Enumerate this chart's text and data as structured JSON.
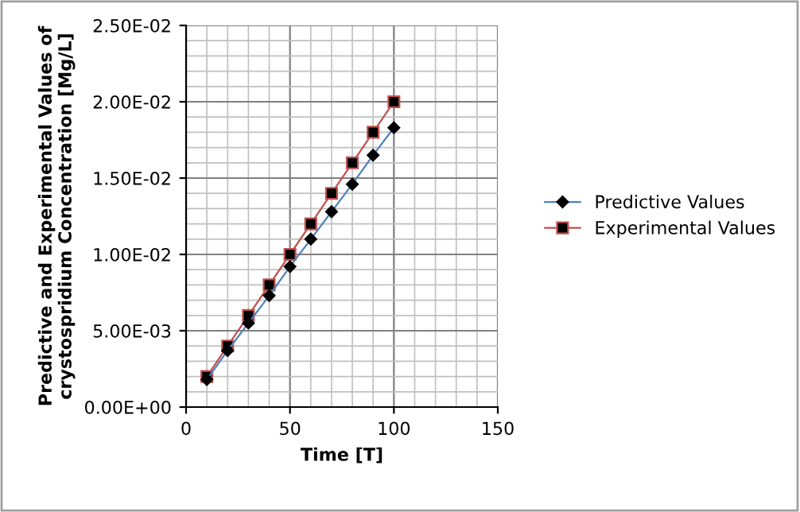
{
  "chart_data": {
    "type": "line",
    "xlabel": "Time [T]",
    "ylabel": "Predictive and Experimental Values of\ncrystospridium Concentration [Mg/L]",
    "x": [
      10,
      20,
      30,
      40,
      50,
      60,
      70,
      80,
      90,
      100
    ],
    "series": [
      {
        "name": "Predictive Values",
        "color": "#4f81bd",
        "marker": "diamond",
        "values": [
          0.0018,
          0.0037,
          0.0055,
          0.0073,
          0.0092,
          0.011,
          0.0128,
          0.0146,
          0.0165,
          0.0183
        ]
      },
      {
        "name": "Experimental Values",
        "color": "#c0504d",
        "marker": "square",
        "values": [
          0.002,
          0.004,
          0.006,
          0.008,
          0.01,
          0.012,
          0.014,
          0.016,
          0.018,
          0.02
        ]
      }
    ],
    "xlim": [
      0,
      150
    ],
    "xticks": [
      0,
      50,
      100,
      150
    ],
    "ylim": [
      0,
      0.025
    ],
    "yticks": [
      {
        "value": 0,
        "label": "0.00E+00"
      },
      {
        "value": 0.005,
        "label": "5.00E-03"
      },
      {
        "value": 0.01,
        "label": "1.00E-02"
      },
      {
        "value": 0.015,
        "label": "1.50E-02"
      },
      {
        "value": 0.02,
        "label": "2.00E-02"
      },
      {
        "value": 0.025,
        "label": "2.50E-02"
      }
    ],
    "grid": true,
    "legend": "right",
    "line_style": "solid"
  }
}
